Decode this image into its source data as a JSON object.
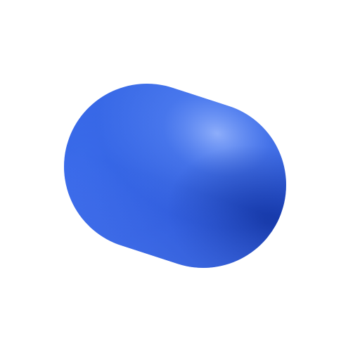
{
  "scene": {
    "background_color": "#ffffff",
    "object": {
      "shape": "capsule",
      "colors": {
        "base": "#2f5fe0",
        "highlight": "#6f9bff",
        "mid": "#3b6ef0",
        "shadow": "#1a3fb3",
        "deep_shadow": "#0f2f9a"
      }
    }
  }
}
